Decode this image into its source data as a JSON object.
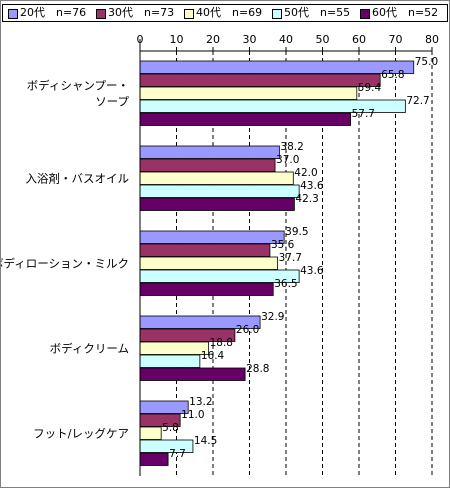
{
  "chart_data": {
    "type": "bar",
    "orientation": "horizontal",
    "categories": [
      "ボディシャンプー・\nソープ",
      "入浴剤・バスオイル",
      "ボディローション・ミルク",
      "ボディクリーム",
      "フット/レッグケア"
    ],
    "series": [
      {
        "name": "20代　n=76",
        "color": "#9999ff",
        "values": [
          75.0,
          38.2,
          39.5,
          32.9,
          13.2
        ]
      },
      {
        "name": "30代　n=73",
        "color": "#993366",
        "values": [
          65.8,
          37.0,
          35.6,
          26.0,
          11.0
        ]
      },
      {
        "name": "40代　n=69",
        "color": "#ffffcc",
        "values": [
          59.4,
          42.0,
          37.7,
          18.8,
          5.8
        ]
      },
      {
        "name": "50代　n=55",
        "color": "#ccffff",
        "values": [
          72.7,
          43.6,
          43.6,
          16.4,
          14.5
        ]
      },
      {
        "name": "60代　n=52",
        "color": "#660066",
        "values": [
          57.7,
          42.3,
          36.5,
          28.8,
          7.7
        ]
      }
    ],
    "xlim": [
      0,
      80
    ],
    "ticks": [
      0,
      10,
      20,
      30,
      40,
      50,
      60,
      70,
      80
    ],
    "tick_labels": [
      "0",
      "10",
      "20",
      "30",
      "40",
      "50",
      "60",
      "70",
      "80"
    ],
    "data_labels": [
      [
        "75.0",
        "38.2",
        "39.5",
        "32.9",
        "13.2"
      ],
      [
        "65.8",
        "37.0",
        "35.6",
        "26.0",
        "11.0"
      ],
      [
        "59.4",
        "42.0",
        "37.7",
        "18.8",
        "5.8"
      ],
      [
        "72.7",
        "43.6",
        "43.6",
        "16.4",
        "14.5"
      ],
      [
        "57.7",
        "42.3",
        "36.5",
        "28.8",
        "7.7"
      ]
    ],
    "gridlines": "vertical-dashed",
    "legend_position": "top",
    "title": "",
    "xlabel": "",
    "ylabel": ""
  }
}
